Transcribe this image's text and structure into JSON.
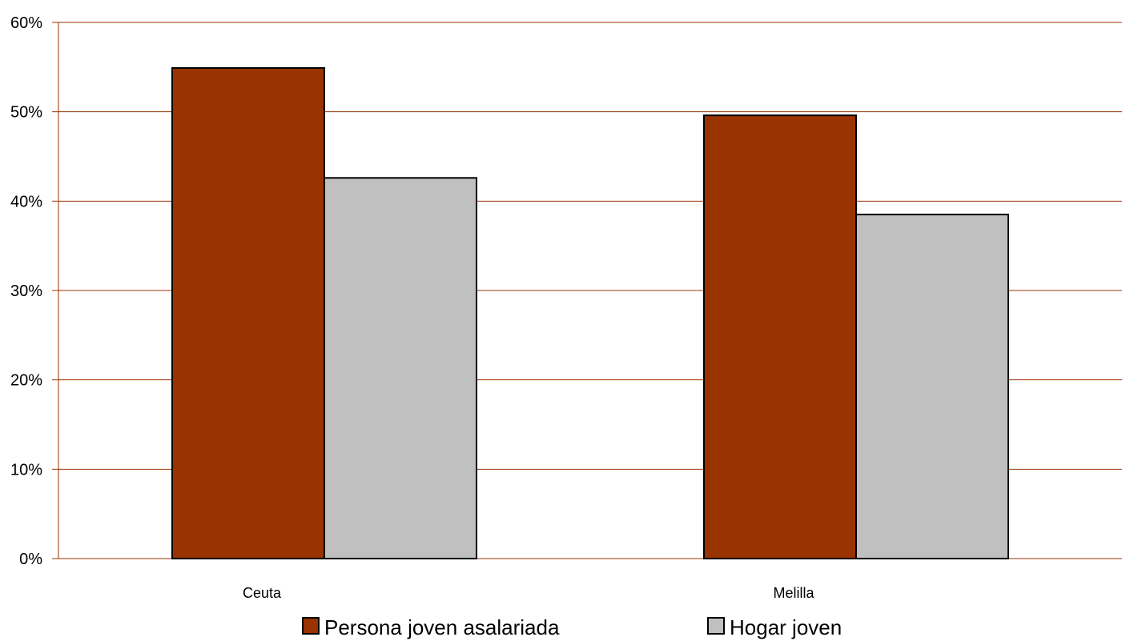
{
  "chart_data": {
    "type": "bar",
    "categories": [
      "Ceuta",
      "Melilla"
    ],
    "series": [
      {
        "name": "Persona joven asalariada",
        "values": [
          54.9,
          49.6
        ],
        "color": "#993300"
      },
      {
        "name": "Hogar joven",
        "values": [
          42.6,
          38.5
        ],
        "color": "#c0c0c0"
      }
    ],
    "ylim": [
      0,
      60
    ],
    "yticks": [
      0,
      10,
      20,
      30,
      40,
      50,
      60
    ],
    "ytick_labels": [
      "0%",
      "10%",
      "20%",
      "30%",
      "40%",
      "50%",
      "60%"
    ],
    "grid": true,
    "grid_color": "#993300",
    "legend_position": "bottom",
    "title": "",
    "xlabel": "",
    "ylabel": ""
  }
}
